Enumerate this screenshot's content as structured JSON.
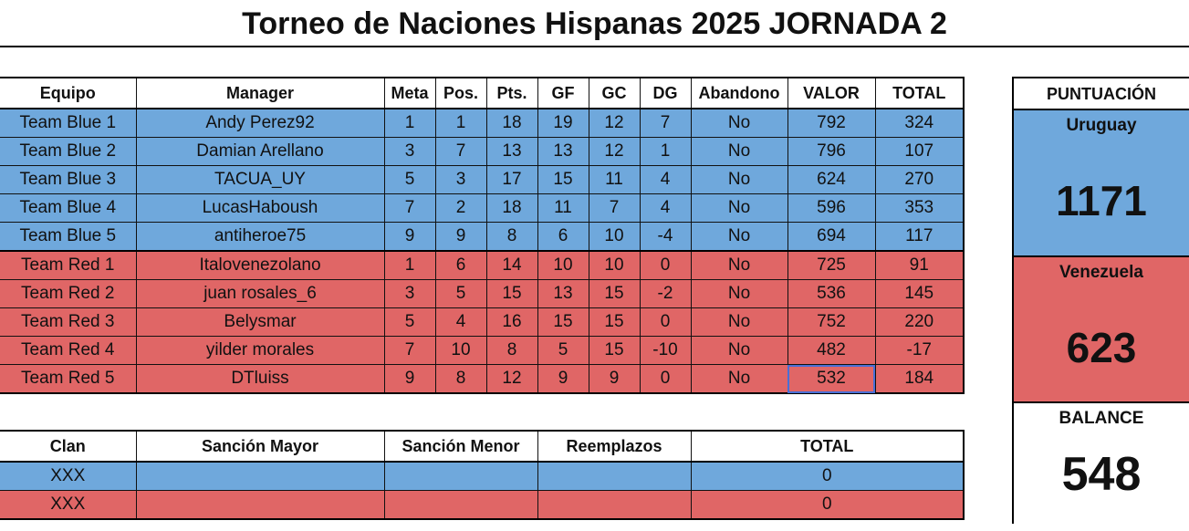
{
  "title": "Torneo de Naciones Hispanas 2025 JORNADA 2",
  "main_table": {
    "headers": [
      "Equipo",
      "Manager",
      "Meta",
      "Pos.",
      "Pts.",
      "GF",
      "GC",
      "DG",
      "Abandono",
      "VALOR",
      "TOTAL"
    ],
    "rows": [
      {
        "team": "Team Blue 1",
        "manager": "Andy Perez92",
        "meta": "1",
        "pos": "1",
        "pts": "18",
        "gf": "19",
        "gc": "12",
        "dg": "7",
        "abandono": "No",
        "valor": "792",
        "total": "324"
      },
      {
        "team": "Team Blue 2",
        "manager": "Damian Arellano",
        "meta": "3",
        "pos": "7",
        "pts": "13",
        "gf": "13",
        "gc": "12",
        "dg": "1",
        "abandono": "No",
        "valor": "796",
        "total": "107"
      },
      {
        "team": "Team Blue 3",
        "manager": "TACUA_UY",
        "meta": "5",
        "pos": "3",
        "pts": "17",
        "gf": "15",
        "gc": "11",
        "dg": "4",
        "abandono": "No",
        "valor": "624",
        "total": "270"
      },
      {
        "team": "Team Blue 4",
        "manager": "LucasHaboush",
        "meta": "7",
        "pos": "2",
        "pts": "18",
        "gf": "11",
        "gc": "7",
        "dg": "4",
        "abandono": "No",
        "valor": "596",
        "total": "353"
      },
      {
        "team": "Team Blue 5",
        "manager": "antiheroe75",
        "meta": "9",
        "pos": "9",
        "pts": "8",
        "gf": "6",
        "gc": "10",
        "dg": "-4",
        "abandono": "No",
        "valor": "694",
        "total": "117"
      },
      {
        "team": "Team Red 1",
        "manager": "Italovenezolano",
        "meta": "1",
        "pos": "6",
        "pts": "14",
        "gf": "10",
        "gc": "10",
        "dg": "0",
        "abandono": "No",
        "valor": "725",
        "total": "91"
      },
      {
        "team": "Team Red 2",
        "manager": "juan rosales_6",
        "meta": "3",
        "pos": "5",
        "pts": "15",
        "gf": "13",
        "gc": "15",
        "dg": "-2",
        "abandono": "No",
        "valor": "536",
        "total": "145"
      },
      {
        "team": "Team Red 3",
        "manager": "Belysmar",
        "meta": "5",
        "pos": "4",
        "pts": "16",
        "gf": "15",
        "gc": "15",
        "dg": "0",
        "abandono": "No",
        "valor": "752",
        "total": "220"
      },
      {
        "team": "Team Red 4",
        "manager": "yilder morales",
        "meta": "7",
        "pos": "10",
        "pts": "8",
        "gf": "5",
        "gc": "15",
        "dg": "-10",
        "abandono": "No",
        "valor": "482",
        "total": "-17"
      },
      {
        "team": "Team Red 5",
        "manager": "DTluiss",
        "meta": "9",
        "pos": "8",
        "pts": "12",
        "gf": "9",
        "gc": "9",
        "dg": "0",
        "abandono": "No",
        "valor": "532",
        "total": "184"
      }
    ]
  },
  "sanctions_table": {
    "headers": [
      "Clan",
      "Sanción Mayor",
      "Sanción Menor",
      "Reemplazos",
      "TOTAL"
    ],
    "rows": [
      {
        "clan": "XXX",
        "mayor": "",
        "menor": "",
        "reemplazos": "",
        "total": "0"
      },
      {
        "clan": "XXX",
        "mayor": "",
        "menor": "",
        "reemplazos": "",
        "total": "0"
      }
    ]
  },
  "score_panel": {
    "header": "PUNTUACIÓN",
    "team_a": {
      "name": "Uruguay",
      "score": "1171"
    },
    "team_b": {
      "name": "Venezuela",
      "score": "623"
    },
    "balance_label": "BALANCE",
    "balance_value": "548"
  },
  "colors": {
    "blue": "#6fa8dc",
    "red": "#e06666",
    "selection": "#4a6fd6"
  }
}
